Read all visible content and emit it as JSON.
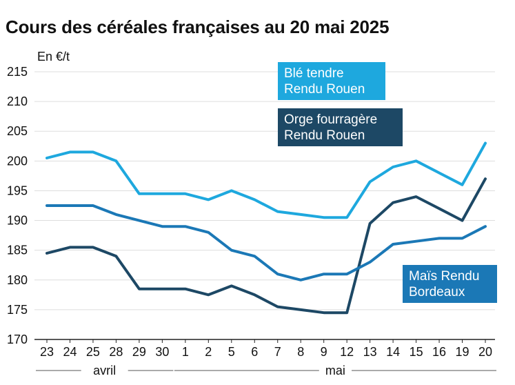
{
  "title": "Cours des céréales françaises au 20 mai 2025",
  "unit_label": "En €/t",
  "colors": {
    "ble": "#1EA8DE",
    "orge": "#1D4865",
    "mais": "#1B78B6",
    "grid": "#dddddd",
    "axis": "#222222",
    "text": "#111111"
  },
  "legend": {
    "ble": [
      "Blé tendre",
      "Rendu Rouen"
    ],
    "orge": [
      "Orge fourragère",
      "Rendu Rouen"
    ],
    "mais": [
      "Maïs Rendu",
      "Bordeaux"
    ]
  },
  "chart_data": {
    "type": "line",
    "title": "Cours des céréales françaises au 20 mai 2025",
    "ylabel": "En €/t",
    "xlabel": "",
    "categories": [
      "23",
      "24",
      "25",
      "28",
      "29",
      "30",
      "1",
      "2",
      "5",
      "6",
      "7",
      "8",
      "9",
      "12",
      "13",
      "14",
      "15",
      "16",
      "19",
      "20"
    ],
    "month_groups": [
      {
        "label": "avril",
        "from": 0,
        "to": 5
      },
      {
        "label": "mai",
        "from": 6,
        "to": 19
      }
    ],
    "ylim": [
      170,
      215
    ],
    "yticks": [
      170,
      175,
      180,
      185,
      190,
      195,
      200,
      205,
      210,
      215
    ],
    "grid": true,
    "series": [
      {
        "name": "Blé tendre Rendu Rouen",
        "color_key": "ble",
        "values": [
          200.5,
          201.5,
          201.5,
          200,
          194.5,
          194.5,
          194.5,
          193.5,
          195,
          193.5,
          191.5,
          191,
          190.5,
          190.5,
          196.5,
          199,
          200,
          198,
          196,
          203
        ]
      },
      {
        "name": "Orge fourragère Rendu Rouen",
        "color_key": "orge",
        "values": [
          184.5,
          185.5,
          185.5,
          184,
          178.5,
          178.5,
          178.5,
          177.5,
          179,
          177.5,
          175.5,
          175,
          174.5,
          174.5,
          189.5,
          193,
          194,
          192,
          190,
          197
        ]
      },
      {
        "name": "Maïs Rendu Bordeaux",
        "color_key": "mais",
        "values": [
          192.5,
          192.5,
          192.5,
          191,
          190,
          189,
          189,
          188,
          185,
          184,
          181,
          180,
          181,
          181,
          183,
          186,
          186.5,
          187,
          187,
          189
        ]
      }
    ]
  }
}
